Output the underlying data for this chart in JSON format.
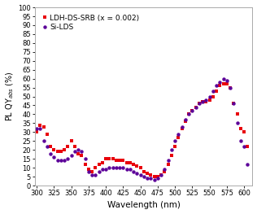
{
  "title": "",
  "xlabel": "Wavelength (nm)",
  "ylabel": "PL QY$_{abs}$ (%)",
  "xlim": [
    297,
    612
  ],
  "ylim": [
    0,
    100
  ],
  "xticks": [
    300,
    325,
    350,
    375,
    400,
    425,
    450,
    475,
    500,
    525,
    550,
    575,
    600
  ],
  "yticks": [
    0,
    5,
    10,
    15,
    20,
    25,
    30,
    35,
    40,
    45,
    50,
    55,
    60,
    65,
    70,
    75,
    80,
    85,
    90,
    95,
    100
  ],
  "legend_labels": [
    "LDH-DS-SRB (x = 0.002)",
    "Si-LDS"
  ],
  "series_colors": [
    "#e8000b",
    "#5c0099"
  ],
  "marker_size": 3.2,
  "ldh_x": [
    300,
    305,
    310,
    315,
    320,
    325,
    330,
    335,
    340,
    345,
    350,
    355,
    360,
    365,
    370,
    375,
    380,
    385,
    390,
    395,
    400,
    405,
    410,
    415,
    420,
    425,
    430,
    435,
    440,
    445,
    450,
    455,
    460,
    465,
    470,
    475,
    480,
    485,
    490,
    495,
    500,
    505,
    510,
    515,
    520,
    525,
    530,
    535,
    540,
    545,
    550,
    555,
    560,
    565,
    570,
    575,
    580,
    585,
    590,
    595,
    600,
    605
  ],
  "ldh_y": [
    30,
    34,
    33,
    29,
    22,
    20,
    19,
    19,
    20,
    22,
    25,
    22,
    18,
    17,
    12,
    9,
    8,
    10,
    12,
    13,
    15,
    15,
    15,
    14,
    14,
    14,
    13,
    13,
    12,
    11,
    10,
    8,
    7,
    6,
    5,
    5,
    6,
    8,
    12,
    17,
    22,
    27,
    32,
    36,
    40,
    42,
    44,
    46,
    47,
    47,
    48,
    50,
    53,
    56,
    57,
    57,
    55,
    46,
    40,
    32,
    30,
    22
  ],
  "silds_x": [
    300,
    305,
    310,
    315,
    320,
    325,
    330,
    335,
    340,
    345,
    350,
    355,
    360,
    365,
    370,
    375,
    380,
    385,
    390,
    395,
    400,
    405,
    410,
    415,
    420,
    425,
    430,
    435,
    440,
    445,
    450,
    455,
    460,
    465,
    470,
    475,
    480,
    485,
    490,
    495,
    500,
    505,
    510,
    515,
    520,
    525,
    530,
    535,
    540,
    545,
    550,
    555,
    560,
    565,
    570,
    575,
    580,
    585,
    590,
    595,
    600,
    605
  ],
  "silds_y": [
    32,
    32,
    25,
    22,
    18,
    16,
    14,
    14,
    14,
    15,
    17,
    19,
    20,
    19,
    15,
    8,
    6,
    6,
    8,
    9,
    9,
    10,
    10,
    10,
    10,
    10,
    9,
    9,
    8,
    7,
    6,
    5,
    4,
    4,
    3,
    4,
    6,
    9,
    14,
    20,
    25,
    29,
    33,
    37,
    40,
    42,
    44,
    46,
    47,
    48,
    50,
    53,
    56,
    58,
    60,
    59,
    55,
    46,
    35,
    25,
    22,
    12
  ],
  "bg_color": "#ffffff",
  "spine_color": "#aaaaaa",
  "xlabel_fontsize": 7.5,
  "ylabel_fontsize": 7.0,
  "tick_fontsize": 6.0,
  "legend_fontsize": 6.5
}
